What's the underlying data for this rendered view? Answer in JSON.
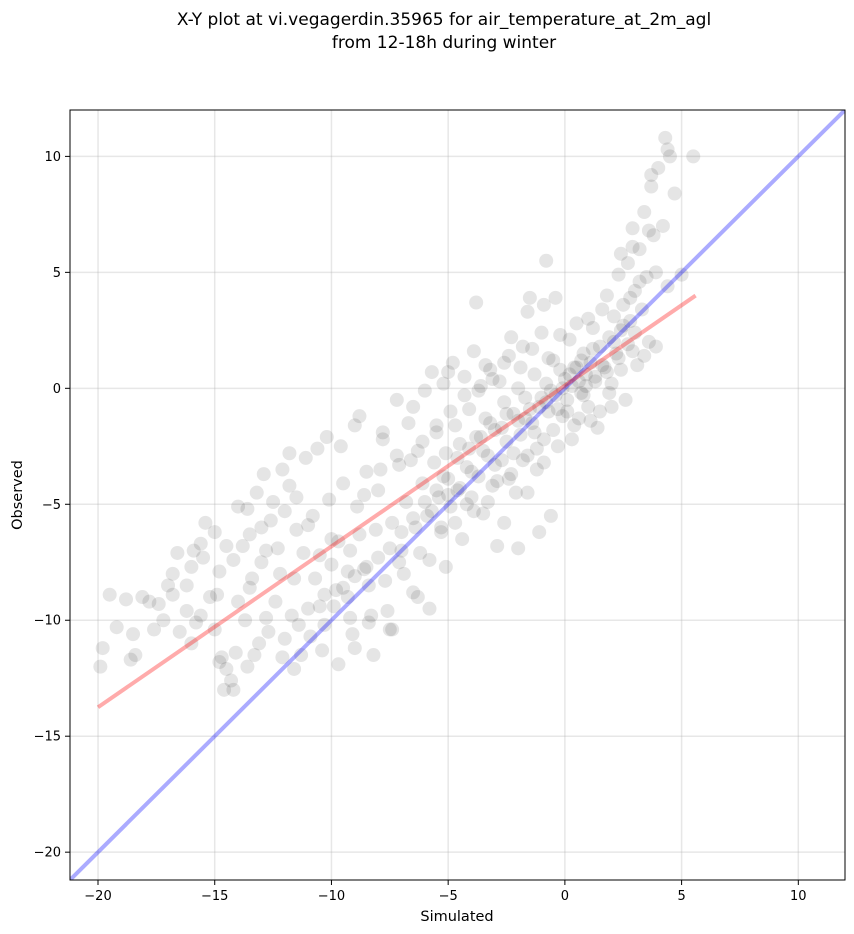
{
  "chart_data": {
    "type": "scatter",
    "title_line1": "X-Y plot at vi.vegagerdin.35965 for air_temperature_at_2m_agl",
    "title_line2": "from 12-18h during winter",
    "xlabel": "Simulated",
    "ylabel": "Observed",
    "xlim": [
      -21.2,
      12.0
    ],
    "ylim": [
      -21.2,
      12.0
    ],
    "xticks": [
      -20,
      -15,
      -10,
      -5,
      0,
      5,
      10
    ],
    "yticks": [
      -20,
      -15,
      -10,
      -5,
      0,
      5,
      10
    ],
    "xtick_labels": [
      "−20",
      "−15",
      "−10",
      "−5",
      "0",
      "5",
      "10"
    ],
    "ytick_labels": [
      "−20",
      "−15",
      "−10",
      "−5",
      "0",
      "5",
      "10"
    ],
    "grid": true,
    "point_color": "#000000",
    "point_alpha": 0.1,
    "identity_line": {
      "color": "#0000ff",
      "alpha": 0.33,
      "x": [
        -21.2,
        12.0
      ],
      "y": [
        -21.2,
        12.0
      ]
    },
    "fit_line": {
      "color": "#ff0000",
      "alpha": 0.33,
      "x": [
        -20.0,
        5.6
      ],
      "y": [
        -13.75,
        4.0
      ]
    },
    "points": [
      [
        -19.5,
        -8.9
      ],
      [
        -19.8,
        -11.2
      ],
      [
        -19.9,
        -12.0
      ],
      [
        -18.8,
        -9.1
      ],
      [
        -18.6,
        -11.7
      ],
      [
        -18.5,
        -10.6
      ],
      [
        -18.4,
        -11.5
      ],
      [
        -18.1,
        -9.0
      ],
      [
        -17.8,
        -9.2
      ],
      [
        -17.0,
        -8.5
      ],
      [
        -16.8,
        -8.9
      ],
      [
        -16.5,
        -10.5
      ],
      [
        -16.2,
        -9.6
      ],
      [
        -15.9,
        -7.0
      ],
      [
        -15.6,
        -6.7
      ],
      [
        -15.4,
        -5.8
      ],
      [
        -15.2,
        -9.0
      ],
      [
        -15.0,
        -10.4
      ],
      [
        -14.8,
        -7.9
      ],
      [
        -14.8,
        -11.8
      ],
      [
        -14.5,
        -12.1
      ],
      [
        -14.3,
        -12.6
      ],
      [
        -14.2,
        -13.0
      ],
      [
        -14.0,
        -9.2
      ],
      [
        -13.8,
        -6.8
      ],
      [
        -13.6,
        -5.2
      ],
      [
        -13.5,
        -8.6
      ],
      [
        -13.3,
        -11.5
      ],
      [
        -13.2,
        -4.5
      ],
      [
        -13.0,
        -7.5
      ],
      [
        -12.8,
        -9.9
      ],
      [
        -12.6,
        -5.7
      ],
      [
        -12.4,
        -9.2
      ],
      [
        -12.3,
        -6.9
      ],
      [
        -12.1,
        -3.5
      ],
      [
        -12.0,
        -10.8
      ],
      [
        -11.8,
        -4.2
      ],
      [
        -11.6,
        -8.2
      ],
      [
        -11.5,
        -6.1
      ],
      [
        -11.3,
        -11.5
      ],
      [
        -11.1,
        -3.0
      ],
      [
        -11.0,
        -9.5
      ],
      [
        -10.8,
        -5.5
      ],
      [
        -10.6,
        -2.6
      ],
      [
        -10.5,
        -7.2
      ],
      [
        -10.3,
        -10.2
      ],
      [
        -10.1,
        -4.8
      ],
      [
        -10.0,
        -6.5
      ],
      [
        -9.8,
        -8.7
      ],
      [
        -9.6,
        -2.5
      ],
      [
        -9.5,
        -4.1
      ],
      [
        -9.3,
        -9.0
      ],
      [
        -9.2,
        -7.0
      ],
      [
        -9.0,
        -11.2
      ],
      [
        -8.9,
        -5.1
      ],
      [
        -8.8,
        -1.2
      ],
      [
        -8.6,
        -7.8
      ],
      [
        -8.5,
        -3.6
      ],
      [
        -8.3,
        -9.8
      ],
      [
        -8.1,
        -6.1
      ],
      [
        -8.0,
        -4.4
      ],
      [
        -7.8,
        -2.2
      ],
      [
        -7.7,
        -8.3
      ],
      [
        -7.5,
        -10.4
      ],
      [
        -7.4,
        -5.8
      ],
      [
        -7.2,
        -0.5
      ],
      [
        -7.1,
        -3.3
      ],
      [
        -7.0,
        -7.0
      ],
      [
        -6.8,
        -4.9
      ],
      [
        -6.7,
        -1.5
      ],
      [
        -6.5,
        -8.8
      ],
      [
        -6.4,
        -6.0
      ],
      [
        -6.3,
        -2.7
      ],
      [
        -6.1,
        -4.1
      ],
      [
        -6.0,
        -0.1
      ],
      [
        -5.9,
        -5.5
      ],
      [
        -5.8,
        -7.4
      ],
      [
        -5.7,
        0.7
      ],
      [
        -5.6,
        -3.2
      ],
      [
        -5.5,
        -1.9
      ],
      [
        -5.4,
        -4.7
      ],
      [
        -5.3,
        -6.0
      ],
      [
        -5.2,
        0.2
      ],
      [
        -5.1,
        -2.8
      ],
      [
        -5.0,
        -3.9
      ],
      [
        -4.9,
        -5.1
      ],
      [
        -4.8,
        1.1
      ],
      [
        -4.7,
        -1.6
      ],
      [
        -4.6,
        -4.4
      ],
      [
        -4.5,
        -2.4
      ],
      [
        -4.4,
        -6.5
      ],
      [
        -4.3,
        0.5
      ],
      [
        -4.2,
        -3.4
      ],
      [
        -4.1,
        -0.9
      ],
      [
        -4.0,
        -4.7
      ],
      [
        -3.9,
        1.6
      ],
      [
        -3.8,
        -2.1
      ],
      [
        -3.7,
        -3.8
      ],
      [
        -3.6,
        0.1
      ],
      [
        -3.5,
        -5.4
      ],
      [
        -3.4,
        -1.3
      ],
      [
        -3.3,
        -2.9
      ],
      [
        -3.2,
        0.8
      ],
      [
        -3.1,
        -4.2
      ],
      [
        -3.0,
        -1.8
      ],
      [
        -2.9,
        -6.8
      ],
      [
        -2.8,
        0.3
      ],
      [
        -2.7,
        -3.1
      ],
      [
        -2.6,
        -0.6
      ],
      [
        -2.5,
        -2.3
      ],
      [
        -2.4,
        1.4
      ],
      [
        -2.3,
        -3.7
      ],
      [
        -2.2,
        -1.1
      ],
      [
        -2.1,
        -4.5
      ],
      [
        -2.0,
        0.0
      ],
      [
        -1.9,
        -2.0
      ],
      [
        -1.8,
        1.8
      ],
      [
        -1.7,
        -0.4
      ],
      [
        -1.6,
        -2.9
      ],
      [
        -1.5,
        3.9
      ],
      [
        -1.4,
        -1.5
      ],
      [
        -1.3,
        0.6
      ],
      [
        -1.2,
        -3.5
      ],
      [
        -1.1,
        -0.8
      ],
      [
        -1.0,
        2.4
      ],
      [
        -0.9,
        -2.2
      ],
      [
        -0.8,
        0.2
      ],
      [
        -0.7,
        -1.0
      ],
      [
        -0.6,
        -5.5
      ],
      [
        -0.5,
        1.2
      ],
      [
        -0.4,
        -0.3
      ],
      [
        -0.3,
        -2.5
      ],
      [
        -0.2,
        0.8
      ],
      [
        -0.1,
        -1.2
      ],
      [
        0.0,
        0.4
      ],
      [
        0.1,
        -0.5
      ],
      [
        0.2,
        2.1
      ],
      [
        0.3,
        0.1
      ],
      [
        0.4,
        -1.6
      ],
      [
        0.5,
        0.9
      ],
      [
        0.6,
        0.3
      ],
      [
        0.7,
        -0.2
      ],
      [
        0.8,
        1.5
      ],
      [
        0.9,
        0.6
      ],
      [
        1.0,
        -0.8
      ],
      [
        1.1,
        1.1
      ],
      [
        1.2,
        2.6
      ],
      [
        1.3,
        0.5
      ],
      [
        1.4,
        -1.7
      ],
      [
        1.5,
        1.8
      ],
      [
        1.6,
        3.4
      ],
      [
        1.7,
        0.9
      ],
      [
        1.8,
        4.0
      ],
      [
        1.9,
        2.2
      ],
      [
        2.0,
        0.2
      ],
      [
        2.1,
        3.1
      ],
      [
        2.2,
        1.5
      ],
      [
        2.3,
        4.9
      ],
      [
        2.4,
        2.5
      ],
      [
        2.5,
        3.6
      ],
      [
        2.6,
        -0.5
      ],
      [
        2.7,
        5.4
      ],
      [
        2.8,
        2.9
      ],
      [
        2.9,
        6.9
      ],
      [
        3.0,
        4.2
      ],
      [
        3.1,
        1.0
      ],
      [
        3.2,
        6.0
      ],
      [
        3.3,
        3.4
      ],
      [
        3.4,
        7.6
      ],
      [
        3.5,
        4.8
      ],
      [
        3.6,
        2.0
      ],
      [
        3.7,
        8.7
      ],
      [
        3.8,
        6.6
      ],
      [
        3.9,
        5.0
      ],
      [
        4.0,
        9.5
      ],
      [
        4.2,
        7.0
      ],
      [
        4.3,
        10.8
      ],
      [
        4.4,
        4.4
      ],
      [
        4.5,
        10.0
      ],
      [
        4.7,
        8.4
      ],
      [
        5.0,
        4.9
      ],
      [
        5.5,
        10.0
      ],
      [
        4.4,
        10.3
      ],
      [
        3.7,
        9.2
      ],
      [
        3.6,
        6.8
      ],
      [
        2.9,
        6.1
      ],
      [
        2.4,
        5.8
      ],
      [
        0.6,
        -1.3
      ],
      [
        -0.4,
        3.9
      ],
      [
        -0.8,
        5.5
      ],
      [
        -1.1,
        -6.2
      ],
      [
        -2.0,
        -6.9
      ],
      [
        -2.6,
        -5.8
      ],
      [
        -3.8,
        3.7
      ],
      [
        -5.8,
        -9.5
      ],
      [
        -7.4,
        -10.4
      ],
      [
        -8.2,
        -11.5
      ],
      [
        -9.1,
        -10.6
      ],
      [
        -10.4,
        -11.3
      ],
      [
        -11.6,
        -12.1
      ],
      [
        -13.1,
        -11.0
      ],
      [
        -14.6,
        -13.0
      ],
      [
        -15.8,
        -10.1
      ],
      [
        -16.6,
        -7.1
      ],
      [
        -17.6,
        -10.4
      ],
      [
        -12.9,
        -3.7
      ],
      [
        -11.8,
        -2.8
      ],
      [
        -10.2,
        -2.1
      ],
      [
        -9.0,
        -1.6
      ],
      [
        -7.8,
        -1.9
      ],
      [
        -6.5,
        -0.8
      ],
      [
        -5.0,
        0.7
      ],
      [
        -3.4,
        1.0
      ],
      [
        -2.3,
        2.2
      ],
      [
        -1.6,
        3.3
      ],
      [
        -0.9,
        3.6
      ],
      [
        -9.7,
        -6.6
      ],
      [
        -9.3,
        -7.9
      ],
      [
        -8.8,
        -6.3
      ],
      [
        -8.4,
        -8.5
      ],
      [
        -9.9,
        -9.4
      ],
      [
        -10.7,
        -8.2
      ],
      [
        -11.2,
        -7.1
      ],
      [
        -12.2,
        -8.0
      ],
      [
        -12.8,
        -7.0
      ],
      [
        -13.4,
        -8.2
      ],
      [
        -14.2,
        -7.4
      ],
      [
        -14.9,
        -8.9
      ],
      [
        -15.6,
        -9.8
      ],
      [
        -16.2,
        -8.5
      ],
      [
        -6.0,
        -4.9
      ],
      [
        -5.7,
        -5.3
      ],
      [
        -5.2,
        -3.8
      ],
      [
        -4.6,
        -3.0
      ],
      [
        -4.1,
        -2.6
      ],
      [
        -3.6,
        -2.1
      ],
      [
        -3.2,
        -1.5
      ],
      [
        -2.7,
        -1.7
      ],
      [
        -2.2,
        -2.8
      ],
      [
        -1.7,
        -1.3
      ],
      [
        -1.3,
        -1.9
      ],
      [
        -0.8,
        -0.6
      ],
      [
        -0.3,
        -0.9
      ],
      [
        0.2,
        0.6
      ],
      [
        0.7,
        1.2
      ],
      [
        1.2,
        1.7
      ],
      [
        1.6,
        1.0
      ],
      [
        2.1,
        2.0
      ],
      [
        2.5,
        2.7
      ],
      [
        2.8,
        3.9
      ],
      [
        3.2,
        4.6
      ],
      [
        0.9,
        0.1
      ],
      [
        0.4,
        0.9
      ],
      [
        -0.1,
        0.0
      ],
      [
        -0.6,
        -0.1
      ],
      [
        -1.0,
        -0.4
      ],
      [
        -1.5,
        -0.9
      ],
      [
        -2.0,
        -1.4
      ],
      [
        -2.5,
        -1.1
      ],
      [
        -3.0,
        -3.3
      ],
      [
        -3.5,
        -2.7
      ],
      [
        -4.0,
        -3.6
      ],
      [
        -4.5,
        -4.3
      ],
      [
        -5.0,
        -4.6
      ],
      [
        -5.5,
        -4.4
      ],
      [
        -6.5,
        -5.6
      ],
      [
        -7.0,
        -6.2
      ],
      [
        -7.5,
        -6.9
      ],
      [
        -8.0,
        -7.3
      ],
      [
        -8.5,
        -7.7
      ],
      [
        -9.0,
        -8.1
      ],
      [
        -9.5,
        -8.6
      ],
      [
        -10.0,
        -7.6
      ],
      [
        -10.5,
        -9.4
      ],
      [
        -11.0,
        -5.9
      ],
      [
        -11.5,
        -4.7
      ],
      [
        -12.0,
        -5.3
      ],
      [
        -12.5,
        -4.9
      ],
      [
        -13.0,
        -6.0
      ],
      [
        -13.5,
        -6.3
      ],
      [
        -14.0,
        -5.1
      ],
      [
        -14.5,
        -6.8
      ],
      [
        -15.0,
        -6.2
      ],
      [
        -15.5,
        -7.3
      ],
      [
        -16.0,
        -7.7
      ],
      [
        -16.8,
        -8.0
      ],
      [
        -17.4,
        -9.3
      ],
      [
        -8.6,
        -4.6
      ],
      [
        -7.9,
        -3.5
      ],
      [
        -7.2,
        -2.9
      ],
      [
        -6.6,
        -3.1
      ],
      [
        -6.1,
        -2.3
      ],
      [
        -5.5,
        -1.6
      ],
      [
        -4.9,
        -1.0
      ],
      [
        -4.3,
        -0.3
      ],
      [
        -3.7,
        -0.1
      ],
      [
        -3.1,
        0.4
      ],
      [
        -2.6,
        1.1
      ],
      [
        -1.9,
        0.9
      ],
      [
        -1.4,
        1.7
      ],
      [
        -0.7,
        1.3
      ],
      [
        -0.2,
        2.3
      ],
      [
        0.5,
        2.8
      ],
      [
        1.0,
        3.0
      ],
      [
        1.5,
        -1.0
      ],
      [
        1.9,
        -0.2
      ],
      [
        2.4,
        0.8
      ],
      [
        2.9,
        1.6
      ],
      [
        3.4,
        1.4
      ],
      [
        3.9,
        1.8
      ],
      [
        -11.7,
        -9.8
      ],
      [
        -12.7,
        -10.5
      ],
      [
        -13.7,
        -10.0
      ],
      [
        -14.7,
        -11.6
      ],
      [
        -10.9,
        -10.7
      ],
      [
        -9.7,
        -11.9
      ],
      [
        -8.4,
        -10.1
      ],
      [
        -7.6,
        -9.6
      ],
      [
        -6.9,
        -8.0
      ],
      [
        -6.2,
        -7.1
      ],
      [
        -5.3,
        -6.2
      ],
      [
        -4.7,
        -5.8
      ],
      [
        -4.2,
        -5.0
      ],
      [
        -3.3,
        -4.9
      ],
      [
        -2.4,
        -3.9
      ],
      [
        -1.8,
        -3.1
      ],
      [
        -1.2,
        -2.6
      ],
      [
        -0.5,
        -1.8
      ],
      [
        0.1,
        -1.0
      ],
      [
        0.8,
        -0.3
      ],
      [
        1.3,
        0.3
      ],
      [
        1.8,
        0.7
      ],
      [
        2.3,
        1.3
      ],
      [
        2.7,
        1.9
      ],
      [
        3.0,
        2.4
      ],
      [
        -19.2,
        -10.3
      ],
      [
        -17.2,
        -10.0
      ],
      [
        -16.0,
        -11.0
      ],
      [
        -14.1,
        -11.4
      ],
      [
        -13.6,
        -12.0
      ],
      [
        -12.1,
        -11.6
      ],
      [
        -11.4,
        -10.2
      ],
      [
        -10.3,
        -8.9
      ],
      [
        -9.2,
        -9.9
      ],
      [
        -7.1,
        -7.5
      ],
      [
        -6.3,
        -9.0
      ],
      [
        -5.1,
        -7.7
      ],
      [
        -3.9,
        -5.3
      ],
      [
        -2.9,
        -4.0
      ],
      [
        -1.6,
        -4.5
      ],
      [
        -0.9,
        -3.2
      ],
      [
        0.3,
        -2.2
      ],
      [
        1.1,
        -1.4
      ],
      [
        2.0,
        -0.8
      ]
    ]
  }
}
